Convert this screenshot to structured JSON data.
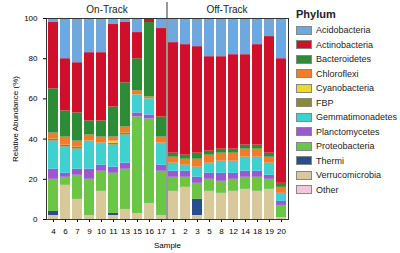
{
  "chart_data": {
    "type": "bar",
    "stacked": true,
    "xlabel": "Sample",
    "ylabel": "Relative Abundance (%)",
    "categories": [
      "4",
      "6",
      "7",
      "9",
      "10",
      "11",
      "13",
      "15",
      "16",
      "17",
      "1",
      "2",
      "3",
      "5",
      "8",
      "12",
      "14",
      "18",
      "19",
      "20"
    ],
    "groups": [
      {
        "name": "On-Track",
        "size": 10
      },
      {
        "name": "Off-Track",
        "size": 10
      }
    ],
    "ylim": [
      0,
      100
    ],
    "yticks": [
      0,
      20,
      40,
      60,
      80,
      100
    ],
    "legend": "right",
    "legend_title": "Phylum",
    "series": [
      {
        "name": "Acidobacteria",
        "color": "#6fa8dc",
        "values": [
          2,
          20,
          22,
          17,
          17,
          3,
          2,
          7,
          0,
          5,
          12,
          13,
          14,
          19,
          19,
          18,
          18,
          13,
          9,
          20
        ]
      },
      {
        "name": "Actinobacteria",
        "color": "#d0102a",
        "values": [
          33,
          26,
          25,
          34,
          34,
          41,
          30,
          13,
          2,
          44,
          55,
          55,
          53,
          47,
          46,
          47,
          45,
          50,
          58,
          62
        ]
      },
      {
        "name": "Bacteroidetes",
        "color": "#2e8b36",
        "values": [
          22,
          13,
          14,
          7,
          8,
          15,
          22,
          16,
          37,
          10,
          2,
          2,
          3,
          2,
          2,
          2,
          2,
          2,
          2,
          2
        ]
      },
      {
        "name": "Chloroflexi",
        "color": "#f07c2c",
        "values": [
          3,
          4,
          3,
          3,
          3,
          2,
          3,
          2,
          1,
          3,
          3,
          3,
          4,
          4,
          4,
          4,
          4,
          4,
          3,
          3
        ]
      },
      {
        "name": "Cyanobacteria",
        "color": "#e8d92a",
        "values": [
          0,
          0,
          0,
          0,
          0,
          1,
          0,
          0,
          0,
          0,
          0,
          0,
          0,
          0,
          0,
          0,
          0,
          0,
          0,
          0
        ]
      },
      {
        "name": "FBP",
        "color": "#8a8a2e",
        "values": [
          1,
          1,
          1,
          0,
          0,
          1,
          1,
          0,
          0,
          0,
          0,
          0,
          0,
          0,
          0,
          0,
          0,
          0,
          0,
          0
        ]
      },
      {
        "name": "Gemmatimonadetes",
        "color": "#3fd0d0",
        "values": [
          14,
          13,
          10,
          14,
          11,
          11,
          14,
          9,
          8,
          11,
          4,
          3,
          5,
          5,
          6,
          6,
          7,
          7,
          6,
          4
        ]
      },
      {
        "name": "Planctomycetes",
        "color": "#9b59d0",
        "values": [
          5,
          2,
          3,
          5,
          3,
          3,
          3,
          2,
          2,
          3,
          3,
          3,
          3,
          3,
          4,
          3,
          3,
          3,
          2,
          2
        ]
      },
      {
        "name": "Proteobacteria",
        "color": "#6cc644",
        "values": [
          16,
          4,
          12,
          18,
          10,
          20,
          20,
          48,
          42,
          22,
          7,
          5,
          8,
          6,
          6,
          6,
          6,
          7,
          5,
          6
        ]
      },
      {
        "name": "Thermi",
        "color": "#2a4d8f",
        "values": [
          2,
          0,
          0,
          0,
          0,
          1,
          0,
          0,
          0,
          0,
          0,
          0,
          8,
          0,
          0,
          0,
          0,
          0,
          0,
          0
        ]
      },
      {
        "name": "Verrucomicrobia",
        "color": "#d9c89a",
        "values": [
          2,
          17,
          10,
          2,
          14,
          2,
          5,
          3,
          8,
          2,
          14,
          16,
          2,
          14,
          13,
          14,
          15,
          14,
          15,
          1
        ]
      },
      {
        "name": "Other",
        "color": "#f4c6d8",
        "values": [
          0,
          0,
          0,
          0,
          0,
          0,
          0,
          0,
          0,
          0,
          0,
          0,
          0,
          0,
          0,
          0,
          0,
          0,
          0,
          0
        ]
      }
    ]
  }
}
